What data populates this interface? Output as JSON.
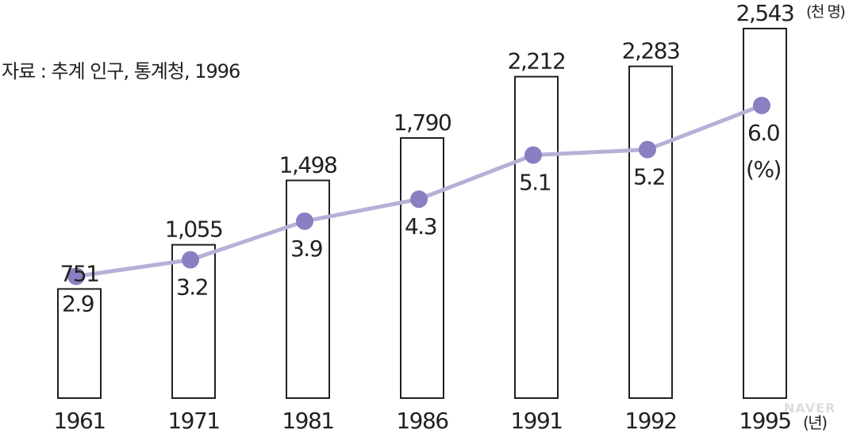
{
  "source": "자료 : 추계 인구, 통계청, 1996",
  "watermark": "NAVER",
  "chart_data": {
    "type": "bar",
    "categories": [
      "1961",
      "1971",
      "1981",
      "1986",
      "1991",
      "1992",
      "1995"
    ],
    "series": [
      {
        "type": "bar",
        "values": [
          751,
          1055,
          1498,
          1790,
          2212,
          2283,
          2543
        ],
        "labels": [
          "751",
          "1,055",
          "1,498",
          "1,790",
          "2,212",
          "2,283",
          "2,543"
        ],
        "unit": "(천 명)"
      },
      {
        "type": "line",
        "values": [
          2.9,
          3.2,
          3.9,
          4.3,
          5.1,
          5.2,
          6.0
        ],
        "labels": [
          "2.9",
          "3.2",
          "3.9",
          "4.3",
          "5.1",
          "5.2",
          "6.0"
        ],
        "unit": "(%)"
      }
    ],
    "x_unit": "(년)",
    "bar_ylim": [
      0,
      2700
    ],
    "line_ylim": [
      0,
      6.9
    ],
    "colors": {
      "bar_fill": "#ffffff",
      "bar_stroke": "#231f20",
      "line": "#b7b0d6",
      "marker": "#8a7fc0",
      "text": "#231f20"
    },
    "grid": false
  }
}
